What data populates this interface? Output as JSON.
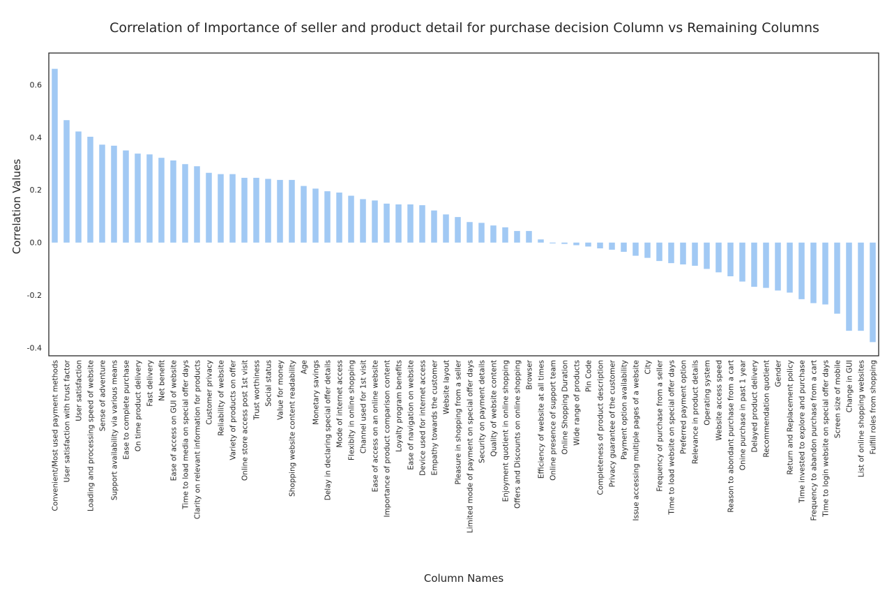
{
  "chart_data": {
    "type": "bar",
    "title": "Correlation of Importance of seller and product detail for purchase decision Column vs Remaining Columns",
    "xlabel": "Column Names",
    "ylabel": "Correlation Values",
    "ylim": [
      -0.43,
      0.72
    ],
    "yticks": [
      -0.4,
      -0.2,
      0.0,
      0.2,
      0.4,
      0.6
    ],
    "ytick_labels": [
      "-0.4",
      "-0.2",
      "0.0",
      "0.2",
      "0.4",
      "0.6"
    ],
    "grid": false,
    "bar_color": "#a1c9f4",
    "categories": [
      "Convenient/Most used payment methods",
      "User satisfaction with trust factor",
      "User satisfaction",
      "Loading and processing speed of website",
      "Sense of adventure",
      "Support availability via various means",
      "Ease to complete purchase",
      "On time product delivery",
      "Fast delivery",
      "Net benefit",
      "Ease of access on GUI of website",
      "Time to load media on special offer days",
      "Clarity on relevant information for products",
      "Customer privacy",
      "Reliability of website",
      "Variety of products on offer",
      "Online store access post 1st visit",
      "Trust worthiness",
      "Social status",
      "Value for money",
      "Shopping website content readability",
      "Age",
      "Monetary savings",
      "Delay in declaring special offer details",
      "Mode of internet access",
      "Flexibity in online shopping",
      "Channel used for 1st visit",
      "Ease of access on an online website",
      "Importance of product comparison content",
      "Loyalty program benefits",
      "Ease of navigation on website",
      "Device used for internet access",
      "Empathy towards the customer",
      "Website layout",
      "Pleasure in shopping from a seller",
      "Limited mode of payment on special offer days",
      "Security on payment details",
      "Quality of website content",
      "Enjoyment quotient in online shopping",
      "Offers and Discounts on online shopping",
      "Browser",
      "Efficiency of website at all times",
      "Online presence of support team",
      "Online Shopping Duration",
      "Wide range of products",
      "Pin Code",
      "Completeness of product description",
      "Privacy guarantee of the customer",
      "Payment option availability",
      "Issue accessing multiple pages of a website",
      "City",
      "Frequency of purchase from a seller",
      "Time to load website on special offer days",
      "Preferred payment option",
      "Relevance in product details",
      "Operating system",
      "Website access speed",
      "Reason to abondant purchase from a cart",
      "Onine purchase in past 1 year",
      "Delayed product delivery",
      "Recommendation quotient",
      "Gender",
      "Return and Replacement policy",
      "Time invested to explore and purchase",
      "Frequency to abandon purchase from a cart",
      "Time to login website on special offer days",
      "Screen size of mobile",
      "Change in GUI",
      "List of online shopping websites",
      "Fulfill roles from shopping"
    ],
    "values": [
      0.66,
      0.465,
      0.422,
      0.402,
      0.372,
      0.368,
      0.35,
      0.338,
      0.335,
      0.322,
      0.312,
      0.298,
      0.29,
      0.265,
      0.26,
      0.26,
      0.246,
      0.246,
      0.242,
      0.238,
      0.238,
      0.215,
      0.205,
      0.195,
      0.19,
      0.178,
      0.165,
      0.16,
      0.148,
      0.145,
      0.145,
      0.142,
      0.122,
      0.107,
      0.097,
      0.078,
      0.075,
      0.065,
      0.058,
      0.044,
      0.044,
      0.012,
      -0.003,
      -0.005,
      -0.01,
      -0.015,
      -0.022,
      -0.027,
      -0.035,
      -0.05,
      -0.058,
      -0.07,
      -0.078,
      -0.083,
      -0.088,
      -0.1,
      -0.113,
      -0.128,
      -0.148,
      -0.168,
      -0.172,
      -0.182,
      -0.19,
      -0.215,
      -0.23,
      -0.235,
      -0.27,
      -0.335,
      -0.335,
      -0.378
    ]
  }
}
